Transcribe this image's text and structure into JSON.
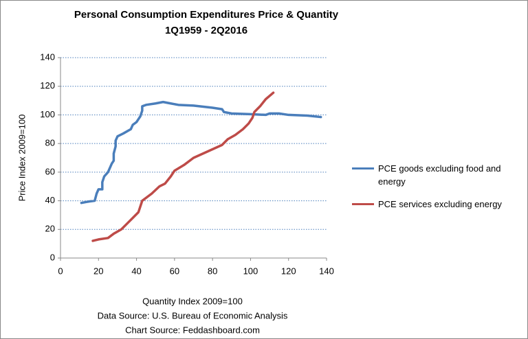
{
  "chart_data": {
    "type": "line",
    "title": "Personal Consumption Expenditures Price & Quantity",
    "subtitle": "1Q1959 - 2Q2016",
    "xlabel": "Quantity Index 2009=100",
    "ylabel": "Price Index 2009=100",
    "notes": [
      "Data Source: U.S. Bureau of Economic Analysis",
      "Chart Source: Feddashboard.com"
    ],
    "xlim": [
      0,
      140
    ],
    "xticks": [
      0,
      20,
      40,
      60,
      80,
      100,
      120,
      140
    ],
    "ylim": [
      0,
      140
    ],
    "yticks": [
      0,
      20,
      40,
      60,
      80,
      100,
      120,
      140
    ],
    "grid": true,
    "legend": "right",
    "series": [
      {
        "name": "PCE goods excluding food and energy",
        "color": "#4a7ebb",
        "x": [
          11,
          15,
          18,
          19,
          20,
          22,
          22,
          23,
          25,
          26,
          27,
          28,
          28,
          29,
          29,
          30,
          33,
          37,
          38,
          40,
          41,
          42,
          43,
          43,
          45,
          50,
          54,
          58,
          62,
          70,
          80,
          85,
          86,
          90,
          100,
          108,
          110,
          115,
          120,
          130,
          137
        ],
        "values": [
          38.5,
          39.5,
          40,
          45,
          48,
          48,
          53,
          57,
          60,
          63,
          66,
          68,
          73,
          78,
          82,
          85,
          87,
          90,
          93,
          95,
          97,
          99,
          103,
          106,
          107,
          108,
          109,
          108,
          107,
          106.5,
          105,
          104,
          102,
          101,
          100.5,
          100,
          101,
          101,
          100,
          99.5,
          98.5
        ]
      },
      {
        "name": "PCE services excluding energy",
        "color": "#be4b48",
        "x": [
          17,
          20,
          25,
          28,
          32,
          35,
          38,
          41,
          42,
          43,
          45,
          48,
          52,
          55,
          58,
          60,
          65,
          70,
          75,
          80,
          85,
          88,
          92,
          96,
          99,
          101,
          102,
          105,
          108,
          112
        ],
        "values": [
          12,
          13,
          14,
          17,
          20,
          24,
          28,
          32,
          36,
          40,
          42,
          45,
          50,
          52,
          57,
          61,
          65,
          70,
          73,
          76,
          79,
          83,
          86,
          90,
          94,
          98,
          102,
          106,
          111,
          115.5
        ]
      }
    ]
  }
}
